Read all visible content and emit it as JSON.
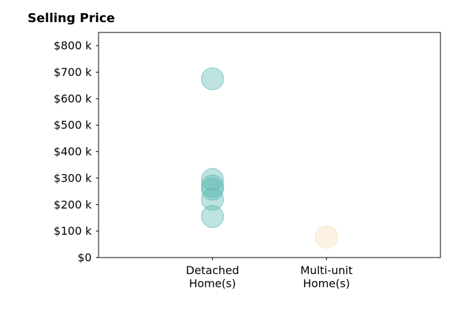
{
  "chart_data": {
    "type": "scatter",
    "title": "Selling Price",
    "xlabel": "",
    "ylabel": "",
    "categories": [
      "Detached\nHome(s)",
      "Multi-unit\nHome(s)"
    ],
    "ylim": [
      0,
      850000
    ],
    "yticks": [
      {
        "value": 0,
        "label": "$0"
      },
      {
        "value": 100000,
        "label": "$100 k"
      },
      {
        "value": 200000,
        "label": "$200 k"
      },
      {
        "value": 300000,
        "label": "$300 k"
      },
      {
        "value": 400000,
        "label": "$400 k"
      },
      {
        "value": 500000,
        "label": "$500 k"
      },
      {
        "value": 600000,
        "label": "$600 k"
      },
      {
        "value": 700000,
        "label": "$700 k"
      },
      {
        "value": 800000,
        "label": "$800 k"
      }
    ],
    "grid": false,
    "legend": false,
    "series": [
      {
        "category": "Detached\nHome(s)",
        "color": "#5cb8b2",
        "values": [
          675000,
          295000,
          270000,
          258000,
          220000,
          155000
        ]
      },
      {
        "category": "Multi-unit\nHome(s)",
        "color": "#f5deb3",
        "values": [
          77000
        ]
      }
    ]
  }
}
